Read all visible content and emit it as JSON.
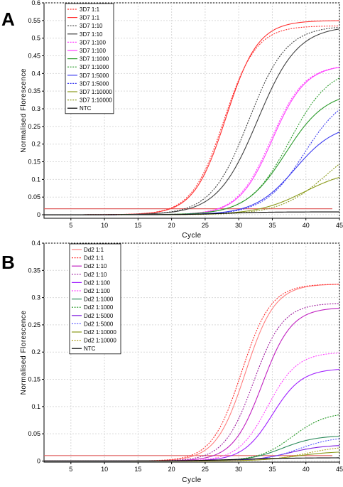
{
  "chart_data": [
    {
      "panel": "A",
      "type": "line",
      "xlabel": "Cycle",
      "ylabel": "Normalised Florescence",
      "xlim": [
        1,
        45
      ],
      "ylim": [
        -0.01,
        0.6
      ],
      "x_ticks": [
        5,
        10,
        15,
        20,
        25,
        30,
        35,
        40,
        45
      ],
      "y_ticks": [
        0,
        0.05,
        0.1,
        0.15,
        0.2,
        0.25,
        0.3,
        0.35,
        0.4,
        0.45,
        0.5,
        0.55,
        0.6
      ],
      "grid": true,
      "legend_position": "top-left",
      "threshold": 0.017,
      "threshold_color": "#e06060",
      "series": [
        {
          "name": "3D7 1:1",
          "color": "#ff3030",
          "dash": "dot",
          "max": 0.535,
          "mid": 27.8,
          "slope": 2.4,
          "values": [
            0,
            0.001,
            0.003,
            0.006,
            0.018,
            0.061,
            0.176,
            0.338,
            0.453,
            0.508,
            0.528
          ]
        },
        {
          "name": "3D7 1:1",
          "color": "#ff3030",
          "dash": "solid",
          "max": 0.55,
          "mid": 28.1,
          "slope": 2.4,
          "values": [
            0,
            0.001,
            0.003,
            0.006,
            0.017,
            0.058,
            0.171,
            0.337,
            0.458,
            0.518,
            0.54
          ]
        },
        {
          "name": "3D7 1:10",
          "color": "#404040",
          "dash": "dot",
          "max": 0.535,
          "mid": 31.5,
          "slope": 2.8,
          "values": [
            0,
            0.001,
            0.002,
            0.003,
            0.006,
            0.017,
            0.056,
            0.153,
            0.301,
            0.42,
            0.49
          ]
        },
        {
          "name": "3D7 1:10",
          "color": "#404040",
          "dash": "solid",
          "max": 0.535,
          "mid": 32.8,
          "slope": 3.0,
          "values": [
            0,
            0.001,
            0.001,
            0.002,
            0.004,
            0.011,
            0.034,
            0.093,
            0.2,
            0.325,
            0.425
          ]
        },
        {
          "name": "3D7 1:100",
          "color": "#ff40ff",
          "dash": "dot",
          "max": 0.425,
          "mid": 34.8,
          "slope": 2.5,
          "values": [
            0,
            0,
            0.001,
            0.002,
            0.003,
            0.008,
            0.022,
            0.063,
            0.155,
            0.276,
            0.36
          ]
        },
        {
          "name": "3D7 1:100",
          "color": "#ff40ff",
          "dash": "solid",
          "max": 0.425,
          "mid": 35.0,
          "slope": 2.5,
          "values": [
            0,
            0,
            0.001,
            0.002,
            0.003,
            0.008,
            0.021,
            0.058,
            0.148,
            0.27,
            0.356
          ]
        },
        {
          "name": "3D7 1:1000",
          "color": "#2a9a2a",
          "dash": "solid",
          "max": 0.35,
          "mid": 37.0,
          "slope": 3.0,
          "values": [
            0,
            0,
            0,
            0.001,
            0.002,
            0.004,
            0.011,
            0.031,
            0.08,
            0.171,
            0.26
          ]
        },
        {
          "name": "3D7 1:1000",
          "color": "#2a9a2a",
          "dash": "dot",
          "max": 0.42,
          "mid": 37.6,
          "slope": 3.0,
          "values": [
            0,
            0,
            0,
            0.001,
            0.002,
            0.004,
            0.011,
            0.03,
            0.08,
            0.18,
            0.29
          ]
        },
        {
          "name": "3D7 1:5000",
          "color": "#3a3af0",
          "dash": "solid",
          "max": 0.26,
          "mid": 38.4,
          "slope": 3.0,
          "values": [
            0,
            0,
            0,
            0.001,
            0.001,
            0.003,
            0.006,
            0.016,
            0.042,
            0.096,
            0.164
          ]
        },
        {
          "name": "3D7 1:5000",
          "color": "#3a3af0",
          "dash": "dot",
          "max": 0.35,
          "mid": 39.8,
          "slope": 3.0,
          "values": [
            0,
            0,
            0,
            0.001,
            0.001,
            0.002,
            0.005,
            0.013,
            0.035,
            0.086,
            0.17
          ]
        },
        {
          "name": "3D7 1:10000",
          "color": "#8a9a1a",
          "dash": "solid",
          "max": 0.13,
          "mid": 39.8,
          "slope": 3.5,
          "values": [
            0,
            0,
            0,
            0.001,
            0.001,
            0.002,
            0.004,
            0.009,
            0.02,
            0.041,
            0.069
          ]
        },
        {
          "name": "3D7 1:10000",
          "color": "#8a9a1a",
          "dash": "dot",
          "max": 0.23,
          "mid": 43.2,
          "slope": 3.5,
          "values": [
            0,
            0,
            0,
            0.001,
            0.001,
            0.002,
            0.003,
            0.006,
            0.014,
            0.031,
            0.063
          ]
        },
        {
          "name": "NTC",
          "color": "#000000",
          "dash": "solid",
          "max": 0.008,
          "mid": 28.0,
          "slope": 3.0,
          "values": [
            0,
            0,
            0.001,
            0.002,
            0.003,
            0.004,
            0.005,
            0.006,
            0.007,
            0.007,
            0.008
          ]
        }
      ]
    },
    {
      "panel": "B",
      "type": "line",
      "xlabel": "Cycle",
      "ylabel": "Normalised Florescence",
      "xlim": [
        1,
        45
      ],
      "ylim": [
        -0.002,
        0.4
      ],
      "x_ticks": [
        5,
        10,
        15,
        20,
        25,
        30,
        35,
        40,
        45
      ],
      "y_ticks": [
        0,
        0.05,
        0.1,
        0.15,
        0.2,
        0.25,
        0.3,
        0.35,
        0.4
      ],
      "grid": true,
      "legend_position": "top-left",
      "threshold": 0.01,
      "threshold_color": "#e06060",
      "series": [
        {
          "name": "Dd2 1:1",
          "color": "#ff8080",
          "dash": "solid",
          "max": 0.325,
          "mid": 31.0,
          "slope": 2.2,
          "values": [
            0,
            0,
            0.001,
            0.002,
            0.004,
            0.012,
            0.043,
            0.13,
            0.244,
            0.301,
            0.32
          ]
        },
        {
          "name": "Dd2 1:1",
          "color": "#ff3030",
          "dash": "dot",
          "max": 0.325,
          "mid": 30.4,
          "slope": 2.2,
          "values": [
            0,
            0,
            0.001,
            0.002,
            0.004,
            0.015,
            0.054,
            0.152,
            0.258,
            0.306,
            0.321
          ]
        },
        {
          "name": "Dd2 1:10",
          "color": "#c020c0",
          "dash": "solid",
          "max": 0.282,
          "mid": 33.5,
          "slope": 2.2,
          "values": [
            0,
            0,
            0,
            0.001,
            0.002,
            0.005,
            0.018,
            0.06,
            0.15,
            0.234,
            0.27
          ]
        },
        {
          "name": "Dd2 1:10",
          "color": "#a020a0",
          "dash": "dot",
          "max": 0.29,
          "mid": 32.2,
          "slope": 2.2,
          "values": [
            0,
            0,
            0.001,
            0.001,
            0.003,
            0.009,
            0.031,
            0.098,
            0.2,
            0.262,
            0.282
          ]
        },
        {
          "name": "Dd2 1:100",
          "color": "#a020ff",
          "dash": "solid",
          "max": 0.17,
          "mid": 35.0,
          "slope": 2.2,
          "values": [
            0,
            0,
            0,
            0.001,
            0.001,
            0.003,
            0.008,
            0.027,
            0.073,
            0.13,
            0.161
          ]
        },
        {
          "name": "Dd2 1:100",
          "color": "#ff40ff",
          "dash": "dot",
          "max": 0.2,
          "mid": 34.3,
          "slope": 2.2,
          "values": [
            0,
            0,
            0,
            0.001,
            0.001,
            0.003,
            0.011,
            0.037,
            0.099,
            0.163,
            0.191
          ]
        },
        {
          "name": "Dd2 1:1000",
          "color": "#2a8a5a",
          "dash": "solid",
          "max": 0.047,
          "mid": 36.5,
          "slope": 2.5,
          "values": [
            0,
            0,
            0,
            0,
            0,
            0.001,
            0.002,
            0.006,
            0.016,
            0.031,
            0.041
          ]
        },
        {
          "name": "Dd2 1:1000",
          "color": "#2a9a2a",
          "dash": "dot",
          "max": 0.09,
          "mid": 38.0,
          "slope": 2.5,
          "values": [
            0,
            0,
            0,
            0,
            0,
            0.001,
            0.002,
            0.007,
            0.022,
            0.052,
            0.076
          ]
        },
        {
          "name": "Dd2 1:5000",
          "color": "#8020e0",
          "dash": "solid",
          "max": 0.03,
          "mid": 37.5,
          "slope": 2.6,
          "values": [
            0,
            0,
            0,
            0,
            0,
            0,
            0.001,
            0.003,
            0.009,
            0.018,
            0.025
          ]
        },
        {
          "name": "Dd2 1:5000",
          "color": "#6060ff",
          "dash": "dot",
          "max": 0.045,
          "mid": 39.0,
          "slope": 2.6,
          "values": [
            0,
            0,
            0,
            0,
            0,
            0.001,
            0.001,
            0.003,
            0.009,
            0.022,
            0.035
          ]
        },
        {
          "name": "Dd2 1:10000",
          "color": "#8a9a1a",
          "dash": "solid",
          "max": 0.018,
          "mid": 38.5,
          "slope": 2.8,
          "values": [
            0,
            0,
            0,
            0,
            0,
            0,
            0.001,
            0.002,
            0.005,
            0.01,
            0.014
          ]
        },
        {
          "name": "Dd2 1:10000",
          "color": "#b0a020",
          "dash": "dot",
          "max": 0.028,
          "mid": 40.0,
          "slope": 2.8,
          "values": [
            0,
            0,
            0,
            0,
            0,
            0,
            0.001,
            0.002,
            0.005,
            0.012,
            0.02
          ]
        },
        {
          "name": "NTC",
          "color": "#000000",
          "dash": "solid",
          "max": 0.006,
          "mid": 30.0,
          "slope": 4.0,
          "values": [
            0,
            0,
            0,
            0,
            0.001,
            0.002,
            0.003,
            0.004,
            0.005,
            0.006,
            0.006
          ]
        }
      ]
    }
  ]
}
